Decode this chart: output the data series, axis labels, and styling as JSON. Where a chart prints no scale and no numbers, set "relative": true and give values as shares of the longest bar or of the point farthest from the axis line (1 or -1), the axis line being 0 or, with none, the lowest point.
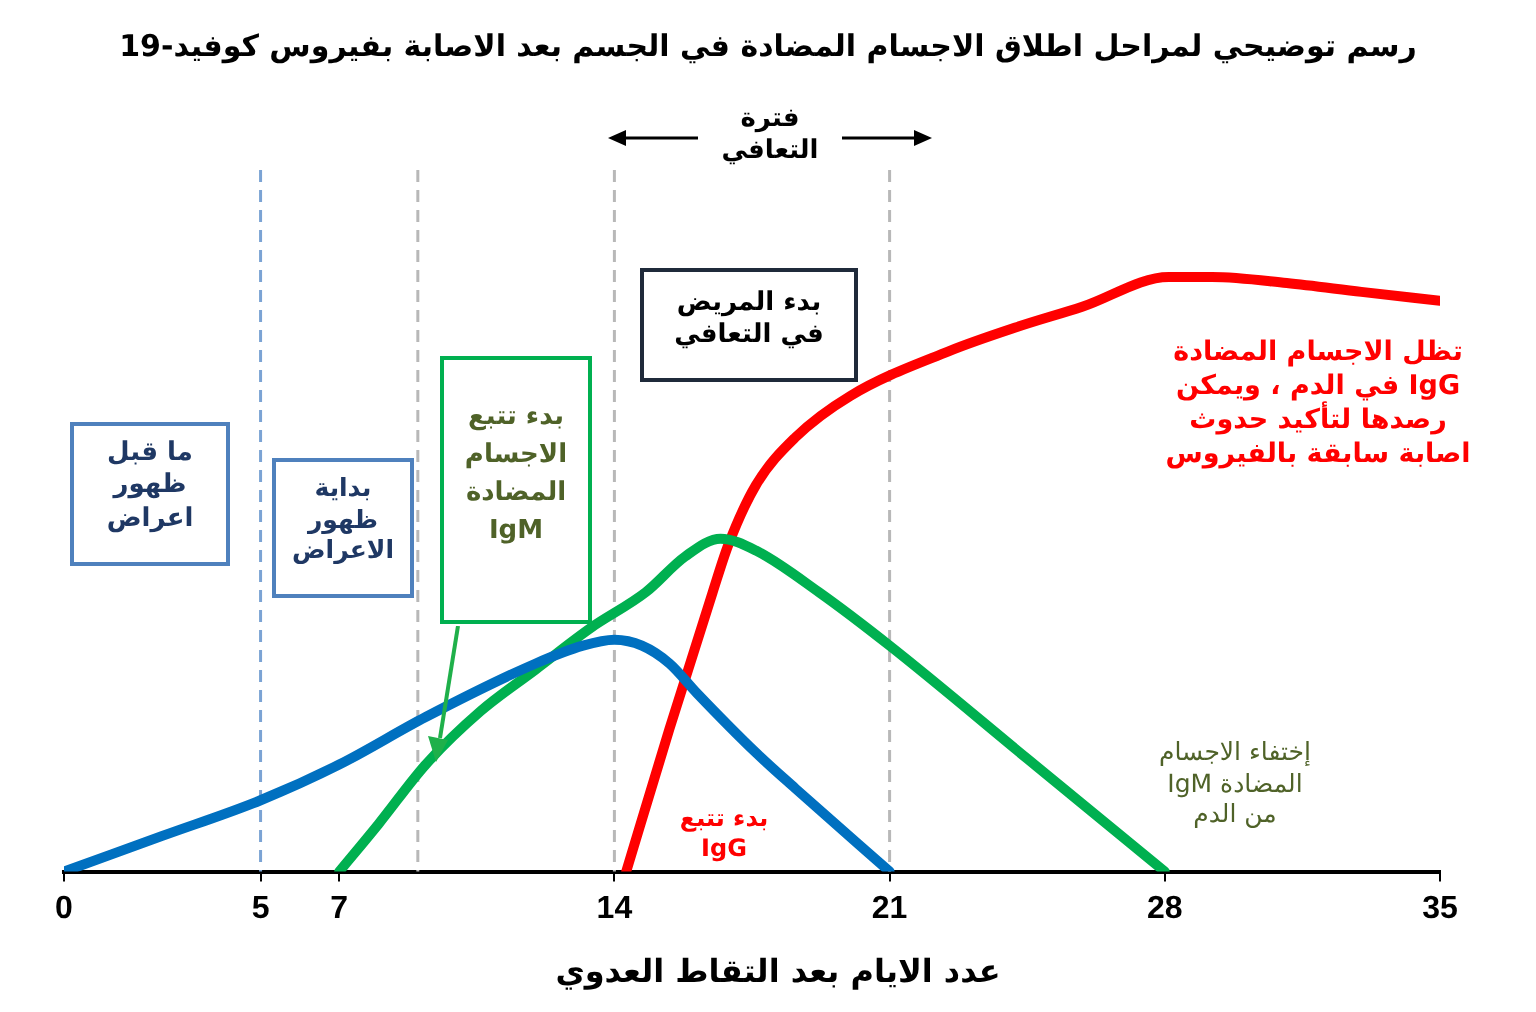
{
  "chart_data": {
    "type": "line",
    "title": "رسم توضيحي لمراحل اطلاق الاجسام المضادة في الجسم بعد الاصابة بفيروس كوفيد-19",
    "xlabel": "عدد الايام بعد التقاط العدوي",
    "annotations": [
      "فترة\nالتعافي",
      "ما قبل\nظهور\nاعراض",
      "بداية\nظهور\nالاعراض",
      "بدء تتبع\nالاجسام\nالمضادة\nIgM",
      "بدء المريض\nفي التعافي",
      "تظل الاجسام المضادة\nIgG في الدم ، ويمكن\nرصدها لتأكيد حدوث\nاصابة سابقة بالفيروس",
      "بدء تتبع\nIgG",
      "إختفاء الاجسام\nالمضادة IgM\nمن الدم"
    ],
    "relative": true,
    "xlim": [
      0,
      35
    ],
    "xticks": [
      0,
      5,
      7,
      14,
      21,
      28,
      35
    ],
    "tick_labels": "x",
    "grid": false,
    "legend": false,
    "marker": "none",
    "line_style": "solid",
    "series": [
      {
        "color": "#0070c0",
        "x": [
          0,
          2.5,
          5,
          7,
          9.2,
          12,
          13.2,
          14,
          14.7,
          15.4,
          16.1,
          17.6,
          18.6,
          21
        ],
        "values": [
          0,
          0.06,
          0.12,
          0.18,
          0.26,
          0.35,
          0.38,
          0.39,
          0.38,
          0.35,
          0.3,
          0.2,
          0.14,
          0
        ]
      },
      {
        "color": "#00b050",
        "x": [
          7,
          8,
          9.2,
          10.6,
          12,
          13.4,
          14.8,
          15.8,
          16.7,
          17.6,
          19.2,
          21,
          24.5,
          28
        ],
        "values": [
          0,
          0.08,
          0.18,
          0.27,
          0.34,
          0.41,
          0.47,
          0.53,
          0.56,
          0.54,
          0.47,
          0.38,
          0.19,
          0
        ]
      },
      {
        "color": "#ff0000",
        "x": [
          14.3,
          15.4,
          16.5,
          16.9,
          17.6,
          18.6,
          20,
          22.5,
          24.2,
          25.9,
          28.1,
          29.2,
          31.1,
          33,
          35
        ],
        "values": [
          0,
          0.24,
          0.47,
          0.55,
          0.65,
          0.73,
          0.8,
          0.875,
          0.915,
          0.95,
          1,
          1,
          0.99,
          0.975,
          0.96
        ]
      }
    ],
    "ref_lines": [
      {
        "axis": "x",
        "value": 5,
        "color": "#7ba3d4",
        "line_style": "dashed"
      },
      {
        "axis": "x",
        "value": 9,
        "color": "#b8b8b8",
        "line_style": "dashed"
      },
      {
        "axis": "x",
        "value": 14,
        "color": "#b8b8b8",
        "line_style": "dashed"
      },
      {
        "axis": "x",
        "value": 21,
        "color": "#b8b8b8",
        "line_style": "dashed"
      }
    ]
  }
}
